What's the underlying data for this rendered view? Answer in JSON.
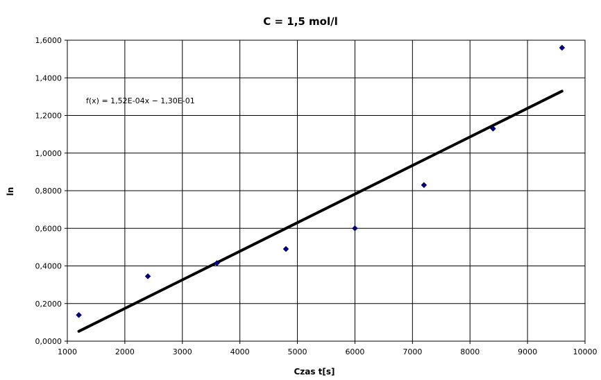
{
  "chart_data": {
    "type": "scatter",
    "title": "C = 1,5 mol/l",
    "xlabel": "Czas t[s]",
    "ylabel": "ln",
    "xlim": [
      1000,
      10000
    ],
    "ylim": [
      0,
      1.6
    ],
    "x_ticks": [
      "1000",
      "2000",
      "3000",
      "4000",
      "5000",
      "6000",
      "7000",
      "8000",
      "9000",
      "10000"
    ],
    "y_ticks": [
      "0,0000",
      "0,2000",
      "0,4000",
      "0,6000",
      "0,8000",
      "1,0000",
      "1,2000",
      "1,4000",
      "1,6000"
    ],
    "grid": true,
    "legend": "none",
    "series": [
      {
        "type": "scatter",
        "color": "#000080",
        "x": [
          1200,
          2400,
          3600,
          4800,
          6000,
          7200,
          8400,
          9600
        ],
        "y": [
          0.139,
          0.345,
          0.415,
          0.49,
          0.6,
          0.83,
          1.13,
          1.56
        ]
      }
    ],
    "trendline": {
      "slope": 0.000152,
      "intercept": -0.13,
      "x_range": [
        1200,
        9600
      ],
      "color": "#000000"
    },
    "annotations": [
      {
        "text": "f(x) = 1,52E-04x − 1,30E-01"
      }
    ]
  }
}
